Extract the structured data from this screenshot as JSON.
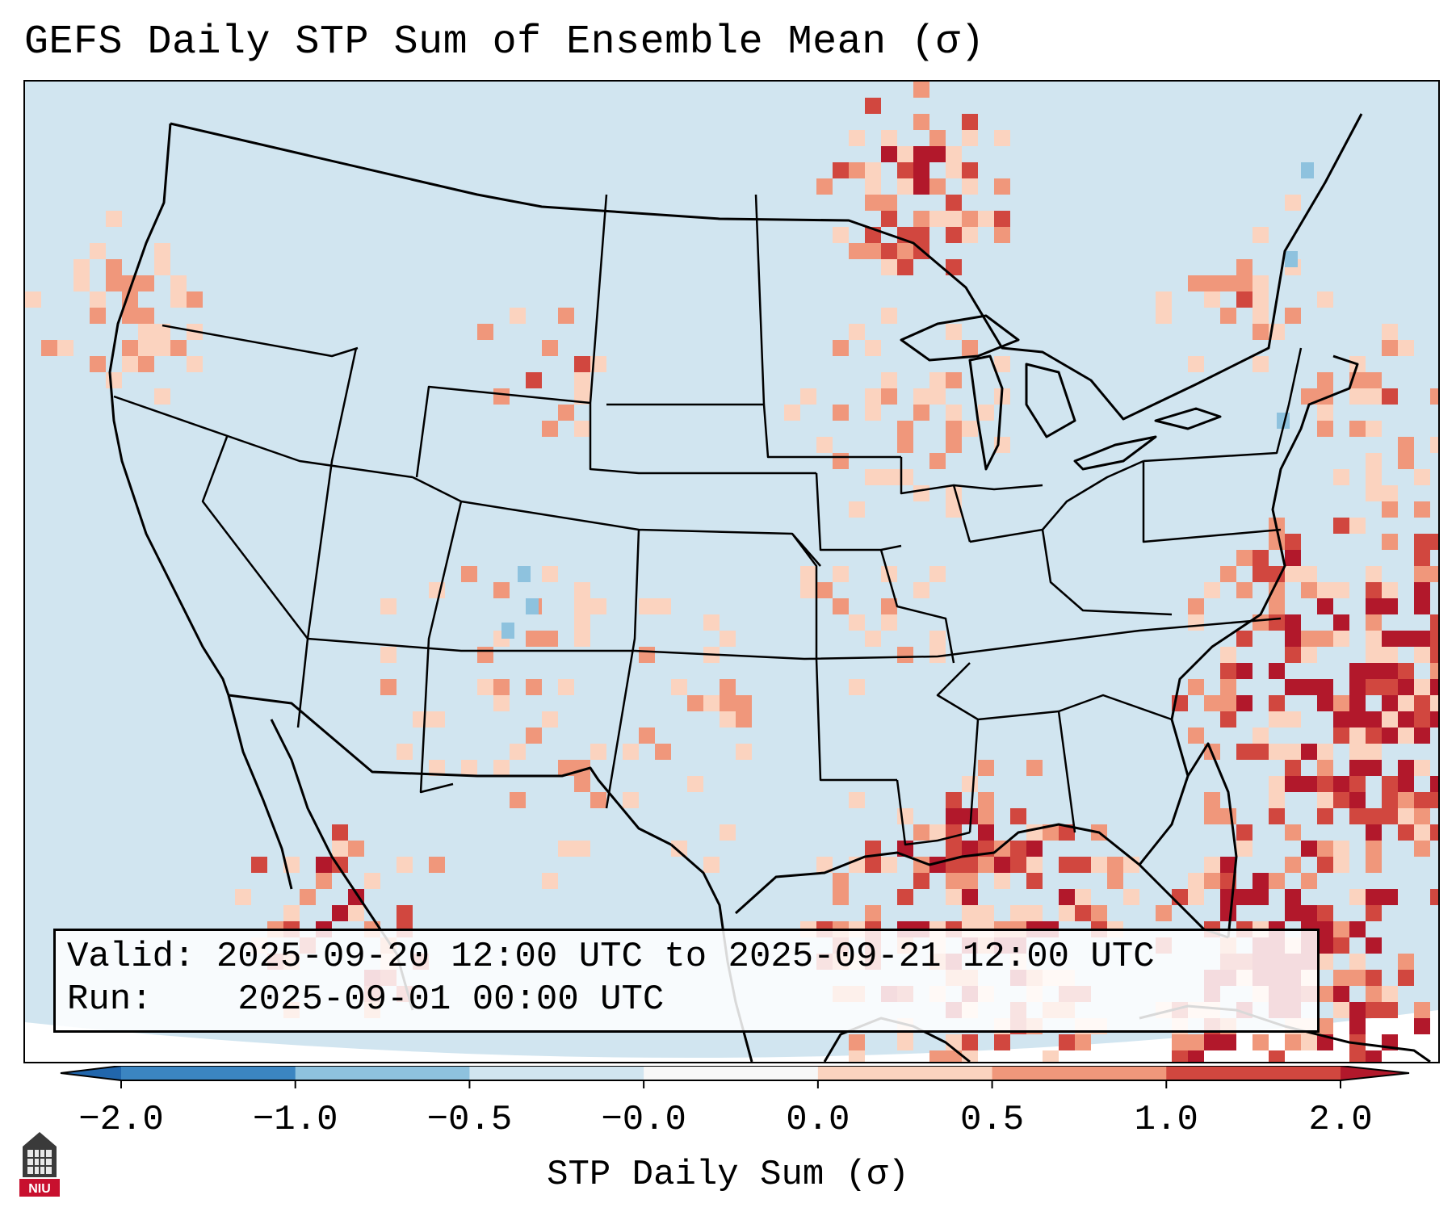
{
  "title": "GEFS Daily STP Sum of Ensemble Mean (σ)",
  "info": {
    "valid_label": "Valid:",
    "valid_value": "2025-09-20 12:00 UTC to 2025-09-21 12:00 UTC",
    "run_label": "Run:",
    "run_value": "2025-09-01 00:00 UTC"
  },
  "colorbar": {
    "label": "STP Daily Sum (σ)",
    "ticks": [
      "−2.0",
      "−1.0",
      "−0.5",
      "−0.0",
      "0.0",
      "0.5",
      "1.0",
      "2.0"
    ],
    "colors": [
      "#3b85c1",
      "#8ec2de",
      "#d1e5f0",
      "#f7f7f7",
      "#fbd3bf",
      "#f0977b",
      "#d1473f"
    ],
    "extend_low_color": "#2166ac",
    "extend_high_color": "#b2182b"
  },
  "map": {
    "background_color": "#d1e5f0",
    "projection": "Lambert Conformal (CONUS)",
    "field": "GEFS ensemble mean daily STP sum, standardized anomaly"
  },
  "logo": {
    "text": "NIU",
    "icon": "niu-building-icon"
  }
}
